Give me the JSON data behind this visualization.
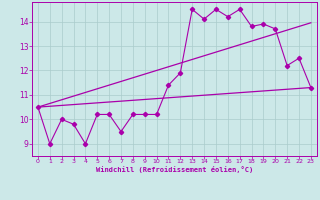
{
  "xlabel": "Windchill (Refroidissement éolien,°C)",
  "x_ticks": [
    0,
    1,
    2,
    3,
    4,
    5,
    6,
    7,
    8,
    9,
    10,
    11,
    12,
    13,
    14,
    15,
    16,
    17,
    18,
    19,
    20,
    21,
    22,
    23
  ],
  "y_ticks": [
    9,
    10,
    11,
    12,
    13,
    14
  ],
  "ylim": [
    8.5,
    14.8
  ],
  "xlim": [
    -0.5,
    23.5
  ],
  "background_color": "#cce8e8",
  "line_color": "#aa00aa",
  "grid_color": "#aacccc",
  "x": [
    0,
    1,
    2,
    3,
    4,
    5,
    6,
    7,
    8,
    9,
    10,
    11,
    12,
    13,
    14,
    15,
    16,
    17,
    18,
    19,
    20,
    21,
    22,
    23
  ],
  "y_main": [
    10.5,
    9.0,
    10.0,
    9.8,
    9.0,
    10.2,
    10.2,
    9.5,
    10.2,
    10.2,
    10.2,
    11.4,
    11.9,
    14.5,
    14.1,
    14.5,
    14.2,
    14.5,
    13.8,
    13.9,
    13.7,
    12.2,
    12.5,
    11.3
  ],
  "line1_x": [
    0,
    23
  ],
  "line1_y": [
    10.5,
    11.3
  ],
  "line2_x": [
    0,
    23
  ],
  "line2_y": [
    10.5,
    13.95
  ]
}
